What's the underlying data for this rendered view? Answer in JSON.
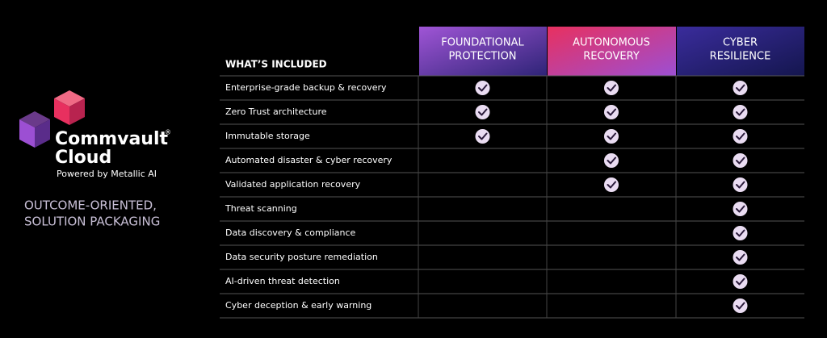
{
  "logo": {
    "brand": "Commvault",
    "trademark": "®",
    "product": "Cloud",
    "tagline": "Powered by Metallic AI"
  },
  "headline": [
    "OUTCOME-ORIENTED,",
    "SOLUTION PACKAGING"
  ],
  "table": {
    "header": "WHAT’S INCLUDED",
    "columns": [
      [
        "FOUNDATIONAL",
        "PROTECTION"
      ],
      [
        "AUTONOMOUS",
        "RECOVERY"
      ],
      [
        "CYBER",
        "RESILIENCE"
      ]
    ],
    "rows": [
      {
        "feature": "Enterprise-grade backup & recovery",
        "included": [
          true,
          true,
          true
        ]
      },
      {
        "feature": "Zero Trust architecture",
        "included": [
          true,
          true,
          true
        ]
      },
      {
        "feature": "Immutable storage",
        "included": [
          true,
          true,
          true
        ]
      },
      {
        "feature": "Automated disaster & cyber recovery",
        "included": [
          false,
          true,
          true
        ]
      },
      {
        "feature": "Validated application recovery",
        "included": [
          false,
          true,
          true
        ]
      },
      {
        "feature": "Threat scanning",
        "included": [
          false,
          false,
          true
        ]
      },
      {
        "feature": "Data discovery & compliance",
        "included": [
          false,
          false,
          true
        ]
      },
      {
        "feature": "Data security posture remediation",
        "included": [
          false,
          false,
          true
        ]
      },
      {
        "feature": "AI-driven threat detection",
        "included": [
          false,
          false,
          true
        ]
      },
      {
        "feature": "Cyber deception & early warning",
        "included": [
          false,
          false,
          true
        ]
      }
    ]
  }
}
